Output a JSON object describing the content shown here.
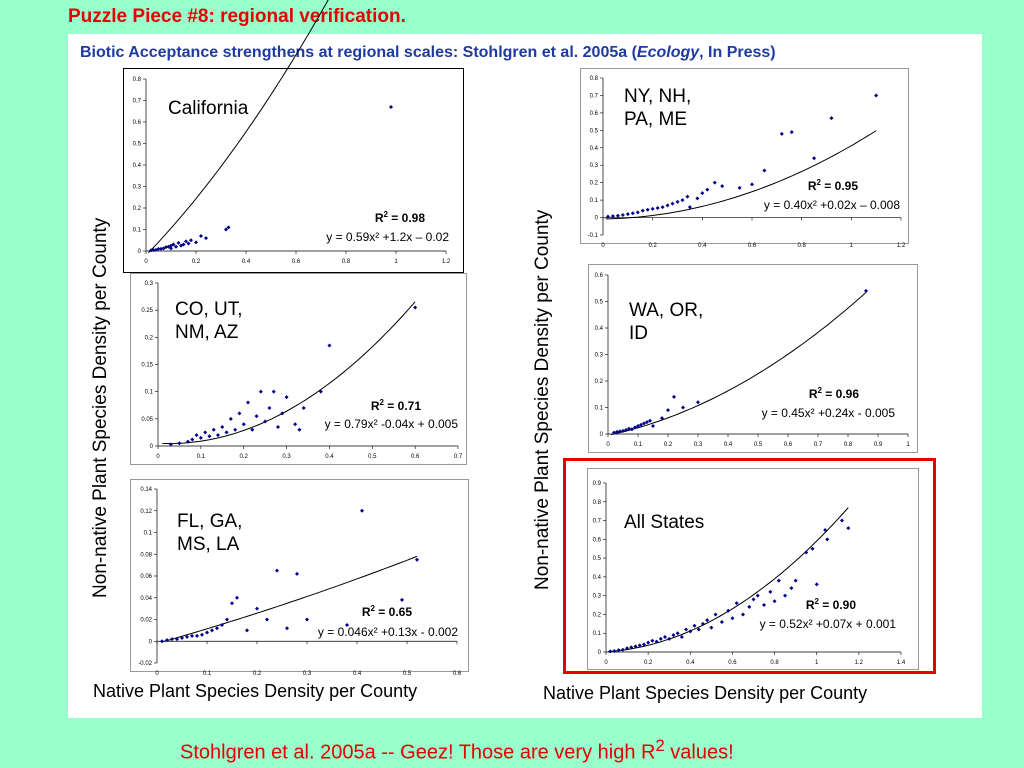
{
  "slide_title": "Puzzle Piece #8: regional verification.",
  "subtitle": {
    "prefix": "Biotic Acceptance strengthens at regional scales: Stohlgren et al. 2005a (",
    "journal": "Ecology",
    "suffix": ", In Press)"
  },
  "footer": {
    "prefix": "Stohlgren et al. 2005a -- Geez!  Those are very high R",
    "sup": "2",
    "suffix": " values!"
  },
  "axis_labels": {
    "y_left": "Non-native Plant Species Density per County",
    "y_right": "Non-native Plant Species Density per County",
    "x_left": "Native Plant Species Density per County",
    "x_right": "Native Plant Species Density per County"
  },
  "colors": {
    "title_red": "#e60000",
    "subtitle_blue": "#1f3aa0",
    "marker": "#00008b",
    "background": "#99ffcc",
    "highlight_border": "#e60000"
  },
  "chart_data": [
    {
      "type": "scatter",
      "region": "California",
      "r2_label": "R",
      "r2_value": " = 0.98",
      "equation": "y = 0.59x² +1.2x – 0.02",
      "fit": [
        0.59,
        1.2,
        -0.02
      ],
      "xlim": [
        0,
        1.2
      ],
      "ylim": [
        0,
        0.8
      ],
      "xticks": [
        "0",
        "0.2",
        "0.4",
        "0.6",
        "0.8",
        "1",
        "1.2"
      ],
      "yticks": [
        "0",
        "0.1",
        "0.2",
        "0.3",
        "0.4",
        "0.5",
        "0.6",
        "0.7",
        "0.8"
      ],
      "points": [
        [
          0.02,
          0.003
        ],
        [
          0.03,
          0.004
        ],
        [
          0.04,
          0.005
        ],
        [
          0.05,
          0.01
        ],
        [
          0.06,
          0.01
        ],
        [
          0.07,
          0.012
        ],
        [
          0.08,
          0.018
        ],
        [
          0.09,
          0.02
        ],
        [
          0.1,
          0.025
        ],
        [
          0.1,
          0.012
        ],
        [
          0.11,
          0.03
        ],
        [
          0.12,
          0.02
        ],
        [
          0.13,
          0.038
        ],
        [
          0.14,
          0.025
        ],
        [
          0.15,
          0.03
        ],
        [
          0.16,
          0.045
        ],
        [
          0.17,
          0.035
        ],
        [
          0.18,
          0.05
        ],
        [
          0.2,
          0.04
        ],
        [
          0.22,
          0.07
        ],
        [
          0.24,
          0.06
        ],
        [
          0.32,
          0.1
        ],
        [
          0.33,
          0.11
        ],
        [
          0.98,
          0.67
        ]
      ],
      "grid": false,
      "legend": "none"
    },
    {
      "type": "scatter",
      "region": "NY, NH,\nPA, ME",
      "r2_label": "R",
      "r2_value": " = 0.95",
      "equation": "y = 0.40x² +0.02x – 0.008",
      "fit": [
        0.4,
        0.02,
        -0.008
      ],
      "xlim": [
        0,
        1.2
      ],
      "ylim": [
        -0.1,
        0.8
      ],
      "xticks": [
        "0",
        "0.2",
        "0.4",
        "0.6",
        "0.8",
        "1",
        "1.2"
      ],
      "yticks": [
        "-0.1",
        "0",
        "0.1",
        "0.2",
        "0.3",
        "0.4",
        "0.5",
        "0.6",
        "0.7",
        "0.8"
      ],
      "points": [
        [
          0.02,
          0.005
        ],
        [
          0.04,
          0.008
        ],
        [
          0.06,
          0.01
        ],
        [
          0.08,
          0.015
        ],
        [
          0.1,
          0.02
        ],
        [
          0.12,
          0.025
        ],
        [
          0.14,
          0.03
        ],
        [
          0.16,
          0.04
        ],
        [
          0.18,
          0.045
        ],
        [
          0.2,
          0.05
        ],
        [
          0.22,
          0.055
        ],
        [
          0.24,
          0.06
        ],
        [
          0.26,
          0.07
        ],
        [
          0.28,
          0.08
        ],
        [
          0.3,
          0.09
        ],
        [
          0.32,
          0.1
        ],
        [
          0.34,
          0.12
        ],
        [
          0.35,
          0.06
        ],
        [
          0.38,
          0.11
        ],
        [
          0.4,
          0.14
        ],
        [
          0.42,
          0.16
        ],
        [
          0.45,
          0.2
        ],
        [
          0.48,
          0.18
        ],
        [
          0.55,
          0.17
        ],
        [
          0.6,
          0.19
        ],
        [
          0.65,
          0.27
        ],
        [
          0.72,
          0.48
        ],
        [
          0.76,
          0.49
        ],
        [
          0.85,
          0.34
        ],
        [
          0.92,
          0.57
        ],
        [
          1.1,
          0.7
        ]
      ],
      "grid": false,
      "legend": "none"
    },
    {
      "type": "scatter",
      "region": "CO, UT,\nNM, AZ",
      "r2_label": "R",
      "r2_value": " = 0.71",
      "equation": "y = 0.79x² -0.04x + 0.005",
      "fit": [
        0.79,
        -0.04,
        0.005
      ],
      "xlim": [
        0,
        0.7
      ],
      "ylim": [
        0,
        0.3
      ],
      "xticks": [
        "0",
        "0.1",
        "0.2",
        "0.3",
        "0.4",
        "0.5",
        "0.6",
        "0.7"
      ],
      "yticks": [
        "0",
        "0.05",
        "0.1",
        "0.15",
        "0.2",
        "0.25",
        "0.3"
      ],
      "points": [
        [
          0.03,
          0.003
        ],
        [
          0.05,
          0.005
        ],
        [
          0.07,
          0.008
        ],
        [
          0.08,
          0.012
        ],
        [
          0.09,
          0.02
        ],
        [
          0.1,
          0.015
        ],
        [
          0.11,
          0.025
        ],
        [
          0.12,
          0.018
        ],
        [
          0.13,
          0.03
        ],
        [
          0.14,
          0.02
        ],
        [
          0.15,
          0.035
        ],
        [
          0.16,
          0.025
        ],
        [
          0.17,
          0.05
        ],
        [
          0.18,
          0.03
        ],
        [
          0.19,
          0.06
        ],
        [
          0.2,
          0.04
        ],
        [
          0.21,
          0.08
        ],
        [
          0.22,
          0.03
        ],
        [
          0.23,
          0.055
        ],
        [
          0.24,
          0.1
        ],
        [
          0.25,
          0.045
        ],
        [
          0.26,
          0.07
        ],
        [
          0.27,
          0.1
        ],
        [
          0.28,
          0.035
        ],
        [
          0.29,
          0.06
        ],
        [
          0.3,
          0.09
        ],
        [
          0.32,
          0.04
        ],
        [
          0.33,
          0.03
        ],
        [
          0.34,
          0.07
        ],
        [
          0.38,
          0.1
        ],
        [
          0.4,
          0.185
        ],
        [
          0.6,
          0.255
        ]
      ],
      "grid": false,
      "legend": "none"
    },
    {
      "type": "scatter",
      "region": "WA, OR,\nID",
      "r2_label": "R",
      "r2_value": " = 0.96",
      "equation": "y = 0.45x² +0.24x - 0.005",
      "fit": [
        0.45,
        0.24,
        -0.005
      ],
      "xlim": [
        0,
        1
      ],
      "ylim": [
        0,
        0.6
      ],
      "xticks": [
        "0",
        "0.1",
        "0.2",
        "0.3",
        "0.4",
        "0.5",
        "0.6",
        "0.7",
        "0.8",
        "0.9",
        "1"
      ],
      "yticks": [
        "0",
        "0.1",
        "0.2",
        "0.3",
        "0.4",
        "0.5",
        "0.6"
      ],
      "points": [
        [
          0.02,
          0.005
        ],
        [
          0.03,
          0.008
        ],
        [
          0.04,
          0.01
        ],
        [
          0.05,
          0.012
        ],
        [
          0.06,
          0.015
        ],
        [
          0.07,
          0.02
        ],
        [
          0.08,
          0.018
        ],
        [
          0.09,
          0.025
        ],
        [
          0.1,
          0.03
        ],
        [
          0.11,
          0.035
        ],
        [
          0.12,
          0.04
        ],
        [
          0.13,
          0.045
        ],
        [
          0.14,
          0.05
        ],
        [
          0.15,
          0.03
        ],
        [
          0.18,
          0.06
        ],
        [
          0.2,
          0.09
        ],
        [
          0.22,
          0.14
        ],
        [
          0.25,
          0.1
        ],
        [
          0.3,
          0.12
        ],
        [
          0.86,
          0.54
        ]
      ],
      "grid": false,
      "legend": "none"
    },
    {
      "type": "scatter",
      "region": "FL, GA,\nMS, LA",
      "r2_label": "R",
      "r2_value": " = 0.65",
      "equation": "y = 0.046x² +0.13x - 0.002",
      "fit": [
        0.046,
        0.13,
        -0.002
      ],
      "xlim": [
        0,
        0.6
      ],
      "ylim": [
        -0.02,
        0.14
      ],
      "xticks": [
        "0",
        "0.1",
        "0.2",
        "0.3",
        "0.4",
        "0.5",
        "0.6"
      ],
      "yticks": [
        "-0.02",
        "0",
        "0.02",
        "0.04",
        "0.06",
        "0.08",
        "0.1",
        "0.12",
        "0.14"
      ],
      "points": [
        [
          0.01,
          0.0
        ],
        [
          0.02,
          0.001
        ],
        [
          0.03,
          0.002
        ],
        [
          0.04,
          0.002
        ],
        [
          0.05,
          0.003
        ],
        [
          0.06,
          0.004
        ],
        [
          0.07,
          0.005
        ],
        [
          0.08,
          0.005
        ],
        [
          0.09,
          0.006
        ],
        [
          0.1,
          0.008
        ],
        [
          0.11,
          0.01
        ],
        [
          0.12,
          0.012
        ],
        [
          0.13,
          0.015
        ],
        [
          0.14,
          0.02
        ],
        [
          0.15,
          0.035
        ],
        [
          0.16,
          0.04
        ],
        [
          0.18,
          0.01
        ],
        [
          0.2,
          0.03
        ],
        [
          0.22,
          0.02
        ],
        [
          0.24,
          0.065
        ],
        [
          0.26,
          0.012
        ],
        [
          0.28,
          0.062
        ],
        [
          0.3,
          0.02
        ],
        [
          0.38,
          0.015
        ],
        [
          0.41,
          0.12
        ],
        [
          0.49,
          0.038
        ],
        [
          0.52,
          0.075
        ]
      ],
      "grid": false,
      "legend": "none"
    },
    {
      "type": "scatter",
      "region": "All States",
      "r2_label": "R",
      "r2_value": " = 0.90",
      "equation": "y = 0.52x² +0.07x + 0.001",
      "fit": [
        0.52,
        0.07,
        0.001
      ],
      "xlim": [
        0,
        1.4
      ],
      "ylim": [
        0,
        0.9
      ],
      "xticks": [
        "0",
        "0.2",
        "0.4",
        "0.6",
        "0.8",
        "1",
        "1.2",
        "1.4"
      ],
      "yticks": [
        "0",
        "0.1",
        "0.2",
        "0.3",
        "0.4",
        "0.5",
        "0.6",
        "0.7",
        "0.8",
        "0.9"
      ],
      "points": [
        [
          0.02,
          0.003
        ],
        [
          0.04,
          0.005
        ],
        [
          0.06,
          0.01
        ],
        [
          0.08,
          0.012
        ],
        [
          0.1,
          0.02
        ],
        [
          0.12,
          0.025
        ],
        [
          0.14,
          0.03
        ],
        [
          0.16,
          0.035
        ],
        [
          0.18,
          0.04
        ],
        [
          0.2,
          0.05
        ],
        [
          0.22,
          0.06
        ],
        [
          0.24,
          0.055
        ],
        [
          0.26,
          0.07
        ],
        [
          0.28,
          0.08
        ],
        [
          0.3,
          0.07
        ],
        [
          0.32,
          0.09
        ],
        [
          0.34,
          0.1
        ],
        [
          0.36,
          0.08
        ],
        [
          0.38,
          0.12
        ],
        [
          0.4,
          0.11
        ],
        [
          0.42,
          0.14
        ],
        [
          0.44,
          0.12
        ],
        [
          0.46,
          0.15
        ],
        [
          0.48,
          0.17
        ],
        [
          0.5,
          0.13
        ],
        [
          0.52,
          0.2
        ],
        [
          0.55,
          0.16
        ],
        [
          0.58,
          0.22
        ],
        [
          0.6,
          0.18
        ],
        [
          0.62,
          0.26
        ],
        [
          0.65,
          0.2
        ],
        [
          0.68,
          0.24
        ],
        [
          0.7,
          0.28
        ],
        [
          0.72,
          0.3
        ],
        [
          0.75,
          0.25
        ],
        [
          0.78,
          0.32
        ],
        [
          0.8,
          0.27
        ],
        [
          0.82,
          0.38
        ],
        [
          0.85,
          0.3
        ],
        [
          0.88,
          0.34
        ],
        [
          0.9,
          0.38
        ],
        [
          0.95,
          0.53
        ],
        [
          0.98,
          0.55
        ],
        [
          1.0,
          0.36
        ],
        [
          1.04,
          0.65
        ],
        [
          1.05,
          0.6
        ],
        [
          1.12,
          0.7
        ],
        [
          1.15,
          0.66
        ]
      ],
      "grid": false,
      "legend": "none"
    }
  ]
}
